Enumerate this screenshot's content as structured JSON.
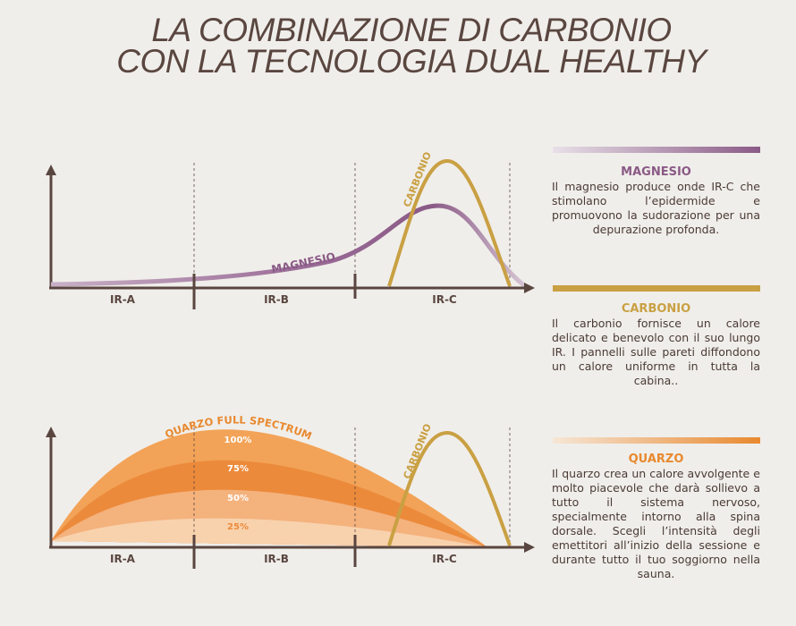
{
  "title": [
    "LA COMBINAZIONE DI CARBONIO",
    "CON LA TECNOLOGIA DUAL HEALTHY"
  ],
  "top_chart": {
    "zones": [
      "IR-A",
      "IR-B",
      "IR-C"
    ],
    "curve_labels": [
      "MAGNESIO",
      "CARBONIO"
    ]
  },
  "bottom_chart": {
    "zones": [
      "IR-A",
      "IR-B",
      "IR-C"
    ],
    "curve_labels": [
      "QUARZO FULL SPECTRUM",
      "CARBONIO"
    ],
    "levels": [
      "100%",
      "75%",
      "50%",
      "25%"
    ]
  },
  "sections": [
    {
      "heading": "MAGNESIO",
      "text": "Il magnesio produce onde IR-C che stimolano l’epidermide e promuovono la sudorazione per una depurazione profonda."
    },
    {
      "heading": "CARBONIO",
      "text": "Il carbonio fornisce un calore delicato e benevolo con il suo lungo IR. I pannelli sulle pareti diffondono un calore uniforme in tutta la cabina.."
    },
    {
      "heading": "QUARZO",
      "text": "Il quarzo crea un calore avvolgente e molto piacevole che darà sollievo a tutto il sistema nervoso, specialmente intorno alla spina dorsale. Scegli l’intensità degli emettitori all’inizio della sessione e durante tutto il tuo soggiorno nella sauna."
    }
  ]
}
